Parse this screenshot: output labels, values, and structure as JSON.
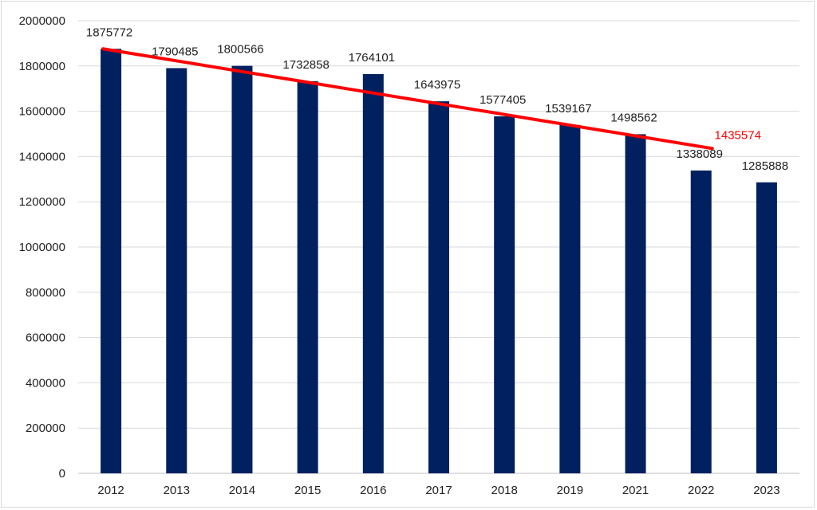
{
  "chart_data": {
    "type": "bar",
    "title": "",
    "xlabel": "",
    "ylabel": "",
    "categories": [
      "2012",
      "2013",
      "2014",
      "2015",
      "2016",
      "2017",
      "2018",
      "2019",
      "2021",
      "2022",
      "2023"
    ],
    "values": [
      1875772,
      1790485,
      1800566,
      1732858,
      1764101,
      1643975,
      1577405,
      1539167,
      1498562,
      1338089,
      1285888
    ],
    "ylim": [
      0,
      2000000
    ],
    "yticks": [
      "0",
      "200000",
      "400000",
      "600000",
      "800000",
      "1000000",
      "1200000",
      "1400000",
      "1600000",
      "1800000",
      "2000000"
    ],
    "grid": true,
    "legend": "none",
    "trendline": {
      "type": "linear",
      "from_category": "2012",
      "to_category": "2022",
      "start_value": 1875772,
      "end_value": 1435574,
      "end_label": "1435574"
    },
    "colors": {
      "bar": "#002060",
      "trendline": "#ff0000",
      "trend_label": "#ff0000",
      "grid": "#d9d9d9",
      "axis": "#bfbfbf"
    }
  }
}
